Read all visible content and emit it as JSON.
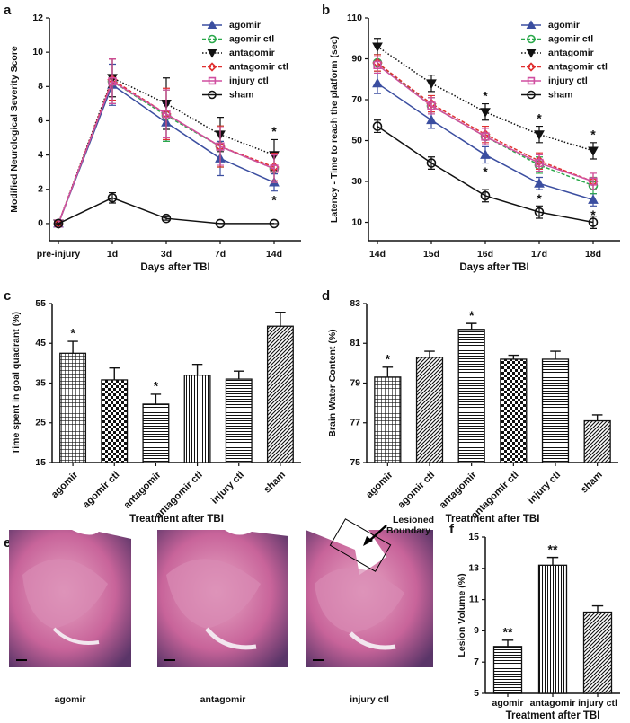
{
  "chart_data": [
    {
      "type": "line",
      "panel": "a",
      "xlabel": "Days after TBI",
      "ylabel": "Modified Neurological Severity Score",
      "categories": [
        "pre-injury",
        "1d",
        "3d",
        "7d",
        "14d"
      ],
      "ylim": [
        -1,
        12
      ],
      "yticks": [
        0,
        2,
        4,
        6,
        8,
        10,
        12
      ],
      "legend": "upper right",
      "series": [
        {
          "name": "agomir",
          "color": "#3b4ea0",
          "marker": "triangle-up",
          "dash": "solid",
          "values": [
            0,
            8.1,
            5.9,
            3.8,
            2.4
          ],
          "errors": [
            0,
            1.2,
            1.1,
            1.0,
            0.5
          ],
          "labels": [
            null,
            null,
            null,
            null,
            "*"
          ],
          "label_side": "below"
        },
        {
          "name": "agomir ctl",
          "color": "#2aa84a",
          "marker": "circle",
          "dash": "dashed",
          "values": [
            0,
            8.3,
            6.3,
            4.5,
            3.2
          ],
          "errors": [
            0,
            1.3,
            1.5,
            1.2,
            0.8
          ]
        },
        {
          "name": "antagomir",
          "color": "#111111",
          "marker": "triangle-down",
          "dash": "dotted",
          "values": [
            0,
            8.5,
            7.0,
            5.2,
            4.0
          ],
          "errors": [
            0,
            1.1,
            1.5,
            1.0,
            0.9
          ],
          "labels": [
            null,
            null,
            null,
            null,
            "*"
          ],
          "label_side": "above"
        },
        {
          "name": "antagomir ctl",
          "color": "#e03030",
          "marker": "diamond",
          "dash": "dashed",
          "values": [
            0,
            8.4,
            6.4,
            4.5,
            3.3
          ],
          "errors": [
            0,
            1.2,
            1.5,
            1.2,
            0.8
          ]
        },
        {
          "name": "injury ctl",
          "color": "#d04fa0",
          "marker": "square",
          "dash": "solid",
          "values": [
            0,
            8.3,
            6.4,
            4.5,
            3.2
          ],
          "errors": [
            0,
            1.3,
            1.4,
            1.1,
            0.8
          ]
        },
        {
          "name": "sham",
          "color": "#111111",
          "marker": "circle",
          "dash": "solid",
          "values": [
            0,
            1.5,
            0.3,
            0,
            0
          ],
          "errors": [
            0,
            0.3,
            0.1,
            0,
            0
          ]
        }
      ]
    },
    {
      "type": "line",
      "panel": "b",
      "xlabel": "Days after TBI",
      "ylabel": "Latency - Time to reach the platform (sec)",
      "categories": [
        "14d",
        "15d",
        "16d",
        "17d",
        "18d"
      ],
      "ylim": [
        1,
        110
      ],
      "yticks": [
        10,
        30,
        50,
        70,
        90,
        110
      ],
      "legend": "upper right",
      "series": [
        {
          "name": "agomir",
          "color": "#3b4ea0",
          "marker": "triangle-up",
          "dash": "solid",
          "values": [
            78,
            60,
            43,
            29,
            21
          ],
          "errors": [
            5,
            4,
            4,
            3,
            3
          ],
          "labels": [
            null,
            null,
            "*",
            "*",
            "*"
          ],
          "label_side": "below"
        },
        {
          "name": "agomir ctl",
          "color": "#2aa84a",
          "marker": "circle",
          "dash": "dashed",
          "values": [
            88,
            67,
            52,
            38,
            28
          ],
          "errors": [
            4,
            4,
            4,
            4,
            4
          ]
        },
        {
          "name": "antagomir",
          "color": "#111111",
          "marker": "triangle-down",
          "dash": "dotted",
          "values": [
            96,
            78,
            64,
            53,
            45
          ],
          "errors": [
            4,
            4,
            4,
            4,
            4
          ],
          "labels": [
            null,
            null,
            "*",
            "*",
            "*"
          ],
          "label_side": "above"
        },
        {
          "name": "antagomir ctl",
          "color": "#e03030",
          "marker": "diamond",
          "dash": "dashed",
          "values": [
            88,
            68,
            53,
            40,
            30
          ],
          "errors": [
            4,
            4,
            4,
            4,
            4
          ]
        },
        {
          "name": "injury ctl",
          "color": "#d04fa0",
          "marker": "square",
          "dash": "solid",
          "values": [
            87,
            67,
            52,
            39,
            30
          ],
          "errors": [
            4,
            4,
            4,
            4,
            4
          ]
        },
        {
          "name": "sham",
          "color": "#111111",
          "marker": "circle",
          "dash": "solid",
          "values": [
            57,
            39,
            23,
            15,
            10
          ],
          "errors": [
            3,
            3,
            3,
            3,
            3
          ]
        }
      ]
    },
    {
      "type": "bar",
      "panel": "c",
      "xlabel": "Treatment after TBI",
      "ylabel": "Time spent in goal quadrant (%)",
      "categories": [
        "agomir",
        "agomir ctl",
        "antagomir",
        "antagomir ctl",
        "injury ctl",
        "sham"
      ],
      "ylim": [
        15,
        55
      ],
      "yticks": [
        15,
        25,
        35,
        45,
        55
      ],
      "values": [
        42.5,
        35.8,
        29.7,
        37,
        36,
        49.3
      ],
      "errors": [
        3,
        3,
        2.5,
        2.7,
        2,
        3.5
      ],
      "labels": [
        "*",
        null,
        "*",
        null,
        null,
        null
      ],
      "patterns": [
        "crosshatch",
        "checker",
        "horizontal",
        "vertical",
        "horizontal",
        "diagonal"
      ]
    },
    {
      "type": "bar",
      "panel": "d",
      "xlabel": "Treatment after TBI",
      "ylabel": "Brain Water Content (%)",
      "categories": [
        "agomir",
        "agomir ctl",
        "antagomir",
        "antagomir ctl",
        "injury ctl",
        "sham"
      ],
      "ylim": [
        75,
        83
      ],
      "yticks": [
        75,
        77,
        79,
        81,
        83
      ],
      "values": [
        79.3,
        80.3,
        81.7,
        80.2,
        80.2,
        77.1
      ],
      "errors": [
        0.5,
        0.3,
        0.3,
        0.2,
        0.4,
        0.3
      ],
      "labels": [
        "*",
        null,
        "*",
        null,
        null,
        null
      ],
      "patterns": [
        "crosshatch",
        "diagonal",
        "horizontal",
        "checker",
        "horizontal",
        "diagonal"
      ]
    },
    {
      "type": "bar",
      "panel": "f",
      "xlabel": "Treatment after TBI",
      "ylabel": "Lesion Volume (%)",
      "categories": [
        "agomir",
        "antagomir",
        "injury ctl"
      ],
      "ylim": [
        5,
        15
      ],
      "yticks": [
        5,
        7,
        9,
        11,
        13,
        15
      ],
      "values": [
        8,
        13.2,
        10.2
      ],
      "errors": [
        0.4,
        0.5,
        0.4
      ],
      "labels": [
        "**",
        "**",
        null
      ],
      "patterns": [
        "horizontal",
        "vertical",
        "diagonal"
      ]
    }
  ],
  "image_panel": {
    "panel": "e",
    "captions": [
      "agomir",
      "antagomir",
      "injury ctl"
    ],
    "annotation": [
      "Lesioned",
      "Boundary"
    ]
  }
}
